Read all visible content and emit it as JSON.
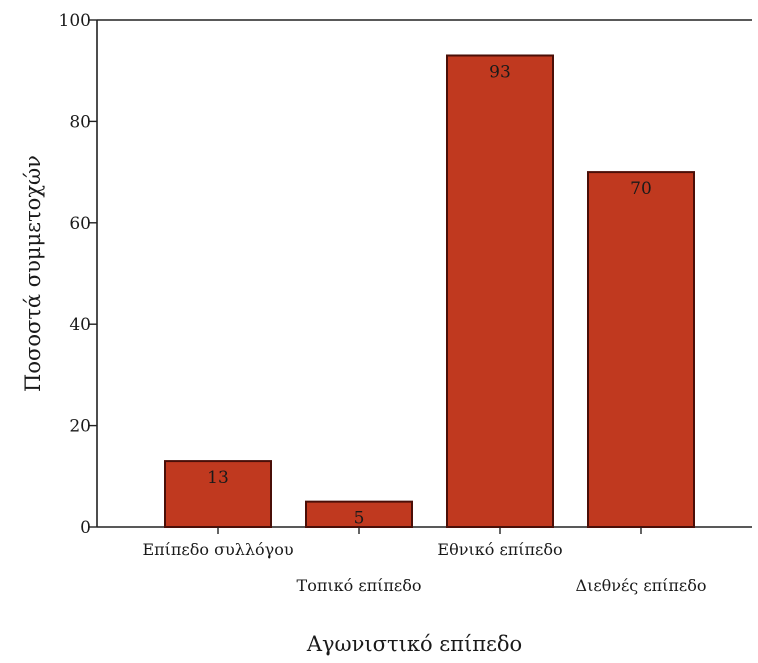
{
  "chart_data": {
    "type": "bar",
    "categories": [
      "Επίπεδο συλλόγου",
      "Τοπικό επίπεδο",
      "Εθνικό επίπεδο",
      "Διεθνές επίπεδο"
    ],
    "values": [
      13,
      5,
      93,
      70
    ],
    "data_labels": [
      "13",
      "5",
      "93",
      "70"
    ],
    "title": "",
    "xlabel": "Αγωνιστικό επίπεδο",
    "ylabel": "Ποσοστά συμμετοχών",
    "ylim": [
      0,
      100
    ],
    "yticks": [
      0,
      20,
      40,
      60,
      80,
      100
    ],
    "grid": false,
    "legend": "none",
    "colors": {
      "bar_fill": "#c0391f",
      "bar_edge": "#4a0f08"
    }
  }
}
